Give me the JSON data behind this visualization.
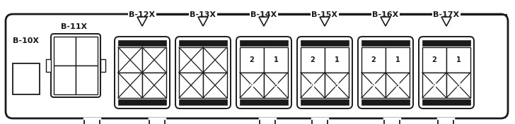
{
  "bg_color": "#ffffff",
  "line_color": "#1a1a1a",
  "fig_width": 7.28,
  "fig_height": 1.76,
  "dpi": 100,
  "b10x_label": "B-10X",
  "b11x_label": "B-11X",
  "top_labels": [
    "B-12X",
    "B-13X",
    "B-14X",
    "B-15X",
    "B-16X",
    "B-17X"
  ],
  "connectors_with_numbers": [
    false,
    false,
    true,
    true,
    true,
    true
  ],
  "font_size_labels": 8.0,
  "font_size_numbers": 7.0
}
